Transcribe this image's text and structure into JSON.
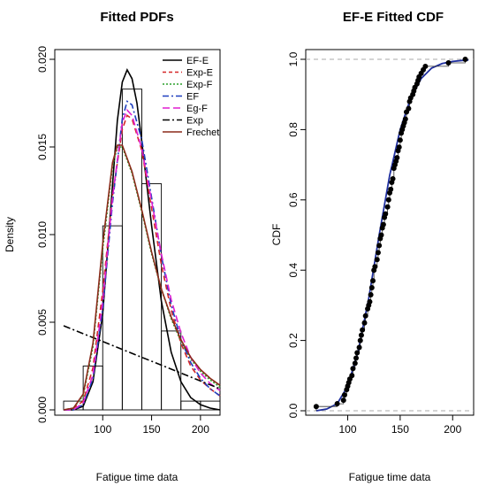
{
  "chart_data": [
    {
      "type": "histogram+line",
      "title": "Fitted PDFs",
      "xlabel": "Fatigue time data",
      "ylabel": "Density",
      "xlim": [
        60,
        220
      ],
      "ylim": [
        0,
        0.02
      ],
      "xticks": [
        "100",
        "150",
        "200"
      ],
      "yticks": [
        "0.000",
        "0.005",
        "0.010",
        "0.015",
        "0.020"
      ],
      "legend_position": "top-right",
      "histogram": {
        "bins": [
          [
            60,
            80
          ],
          [
            80,
            100
          ],
          [
            100,
            120
          ],
          [
            120,
            140
          ],
          [
            140,
            160
          ],
          [
            160,
            180
          ],
          [
            180,
            200
          ],
          [
            200,
            220
          ]
        ],
        "density": [
          0.0005,
          0.0025,
          0.0105,
          0.0183,
          0.0129,
          0.0045,
          0.0005,
          0.0005
        ]
      },
      "series": [
        {
          "name": "EF-E",
          "color": "#000000",
          "dash": "solid",
          "x": [
            60,
            70,
            80,
            90,
            100,
            110,
            115,
            120,
            125,
            130,
            135,
            140,
            150,
            160,
            170,
            180,
            190,
            200,
            210,
            220
          ],
          "y": [
            0.0,
            0.0,
            0.0002,
            0.0016,
            0.0055,
            0.0128,
            0.0165,
            0.0187,
            0.0194,
            0.0189,
            0.0175,
            0.0153,
            0.0105,
            0.0062,
            0.0033,
            0.0016,
            0.0007,
            0.0003,
            0.0001,
            0.0
          ]
        },
        {
          "name": "Exp-E",
          "color": "#d62728",
          "dash": "6,4",
          "x": [
            60,
            70,
            80,
            90,
            100,
            110,
            120,
            125,
            130,
            140,
            150,
            160,
            170,
            180,
            190,
            200,
            210,
            220
          ],
          "y": [
            0.0,
            0.0001,
            0.0005,
            0.0024,
            0.0068,
            0.0122,
            0.016,
            0.0168,
            0.0166,
            0.0148,
            0.0115,
            0.0083,
            0.0057,
            0.0038,
            0.0025,
            0.0017,
            0.0012,
            0.0008
          ]
        },
        {
          "name": "Exp-F",
          "color": "#2ca02c",
          "dash": "2,2",
          "x": [
            60,
            70,
            80,
            90,
            100,
            110,
            115,
            120,
            130,
            140,
            150,
            160,
            170,
            180,
            190,
            200,
            210,
            220
          ],
          "y": [
            0.0,
            0.0001,
            0.0008,
            0.0036,
            0.0092,
            0.0139,
            0.015,
            0.015,
            0.0135,
            0.0113,
            0.0089,
            0.0069,
            0.0052,
            0.0039,
            0.0029,
            0.0022,
            0.0017,
            0.0013
          ]
        },
        {
          "name": "EF",
          "color": "#1f3fbf",
          "dash": "7,3,2,3",
          "x": [
            60,
            70,
            80,
            90,
            100,
            110,
            120,
            125,
            130,
            140,
            150,
            160,
            170,
            180,
            190,
            200,
            210,
            220
          ],
          "y": [
            0.0,
            0.0,
            0.0003,
            0.0018,
            0.0058,
            0.0118,
            0.0166,
            0.0176,
            0.0174,
            0.0154,
            0.0121,
            0.0088,
            0.006,
            0.004,
            0.0027,
            0.0018,
            0.0012,
            0.0008
          ]
        },
        {
          "name": "Eg-F",
          "color": "#e01fd0",
          "dash": "8,4",
          "x": [
            60,
            70,
            80,
            90,
            100,
            110,
            120,
            125,
            130,
            140,
            150,
            160,
            170,
            180,
            190,
            200,
            210,
            220
          ],
          "y": [
            0.0,
            0.0,
            0.0004,
            0.002,
            0.0062,
            0.0121,
            0.0164,
            0.0171,
            0.0168,
            0.0149,
            0.0119,
            0.0089,
            0.0063,
            0.0044,
            0.003,
            0.0021,
            0.0015,
            0.0011
          ]
        },
        {
          "name": "Exp",
          "color": "#000000",
          "dash": "8,3,2,3",
          "x": [
            60,
            220
          ],
          "y": [
            0.0048,
            0.0012
          ]
        },
        {
          "name": "Frechet",
          "color": "#8b2a1a",
          "dash": "solid",
          "x": [
            60,
            70,
            80,
            90,
            100,
            110,
            115,
            120,
            130,
            140,
            150,
            160,
            170,
            180,
            190,
            200,
            210,
            220
          ],
          "y": [
            0.0,
            0.0001,
            0.0009,
            0.0038,
            0.0095,
            0.0141,
            0.0151,
            0.0151,
            0.0136,
            0.0114,
            0.009,
            0.0069,
            0.0053,
            0.004,
            0.003,
            0.0023,
            0.0018,
            0.0014
          ]
        }
      ]
    },
    {
      "type": "scatter+line",
      "title": "EF-E Fitted CDF",
      "xlabel": "Fatigue time data",
      "ylabel": "CDF",
      "xlim": [
        60,
        220
      ],
      "ylim": [
        -0.02,
        1.02
      ],
      "xticks": [
        "100",
        "150",
        "200"
      ],
      "yticks": [
        "0.0",
        "0.2",
        "0.4",
        "0.6",
        "0.8",
        "1.0"
      ],
      "reference_lines": [
        0,
        1
      ],
      "points": {
        "x": [
          70,
          90,
          96,
          97,
          99,
          100,
          101,
          102,
          104,
          105,
          107,
          108,
          109,
          111,
          112,
          113,
          114,
          116,
          117,
          119,
          120,
          121,
          122,
          123,
          124,
          125,
          126,
          128,
          129,
          130,
          131,
          132,
          133,
          134,
          135,
          136,
          138,
          139,
          140,
          141,
          142,
          143,
          144,
          145,
          146,
          147,
          148,
          149,
          150,
          151,
          152,
          153,
          154,
          155,
          156,
          158,
          159,
          160,
          162,
          163,
          164,
          166,
          167,
          168,
          170,
          172,
          174,
          196,
          212
        ],
        "y": [
          0.012,
          0.02,
          0.03,
          0.045,
          0.06,
          0.07,
          0.08,
          0.09,
          0.1,
          0.12,
          0.135,
          0.15,
          0.165,
          0.18,
          0.2,
          0.215,
          0.23,
          0.25,
          0.27,
          0.29,
          0.3,
          0.31,
          0.33,
          0.35,
          0.37,
          0.4,
          0.41,
          0.43,
          0.45,
          0.47,
          0.49,
          0.5,
          0.52,
          0.53,
          0.55,
          0.56,
          0.58,
          0.6,
          0.62,
          0.63,
          0.65,
          0.66,
          0.69,
          0.7,
          0.71,
          0.72,
          0.74,
          0.75,
          0.77,
          0.79,
          0.8,
          0.81,
          0.82,
          0.83,
          0.85,
          0.86,
          0.88,
          0.89,
          0.9,
          0.91,
          0.92,
          0.93,
          0.94,
          0.95,
          0.96,
          0.97,
          0.98,
          0.99,
          1.0
        ]
      },
      "series": [
        {
          "name": "EF-E Fitted CDF",
          "color": "#1f2f9f",
          "x": [
            70,
            80,
            90,
            100,
            110,
            120,
            130,
            140,
            150,
            160,
            170,
            180,
            190,
            200,
            210,
            215
          ],
          "y": [
            0.0,
            0.005,
            0.02,
            0.07,
            0.17,
            0.32,
            0.5,
            0.67,
            0.8,
            0.89,
            0.945,
            0.975,
            0.988,
            0.994,
            0.997,
            0.998
          ]
        }
      ]
    }
  ]
}
